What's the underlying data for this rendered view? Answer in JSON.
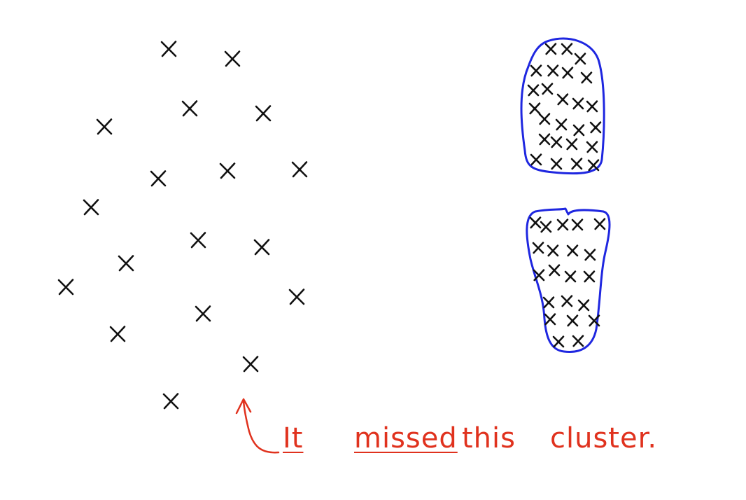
{
  "annotation": {
    "words": [
      "It",
      "missed",
      "this",
      "cluster."
    ],
    "color": "#e0321e"
  },
  "palette": {
    "mark": "#111111",
    "outline": "#1f27e0",
    "annotation": "#e0321e",
    "background": "#ffffff"
  }
}
